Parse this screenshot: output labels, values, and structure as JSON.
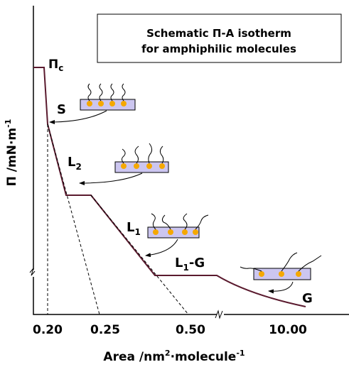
{
  "title": {
    "line1": "Schematic Π-A isotherm",
    "line2": "for amphiphilic molecules"
  },
  "y_axis": {
    "symbol": "Π",
    "rest": " /mN·m",
    "sup": "-1"
  },
  "x_axis": {
    "main": "Area /nm",
    "sup1": "2",
    "mid": "·molecule",
    "sup2": "-1"
  },
  "x_ticks": [
    "0.20",
    "0.25",
    "0.50",
    "10.00"
  ],
  "collapse_pressure": {
    "symbol": "Π",
    "subscript": "c"
  },
  "phases": {
    "S": {
      "symbol": "S"
    },
    "L2": {
      "symbol": "L",
      "subscript": "2"
    },
    "L1": {
      "symbol": "L",
      "subscript": "1"
    },
    "L1G": {
      "symbol": "L",
      "subscript": "1",
      "suffix": "-G"
    },
    "G": {
      "symbol": "G"
    }
  }
}
